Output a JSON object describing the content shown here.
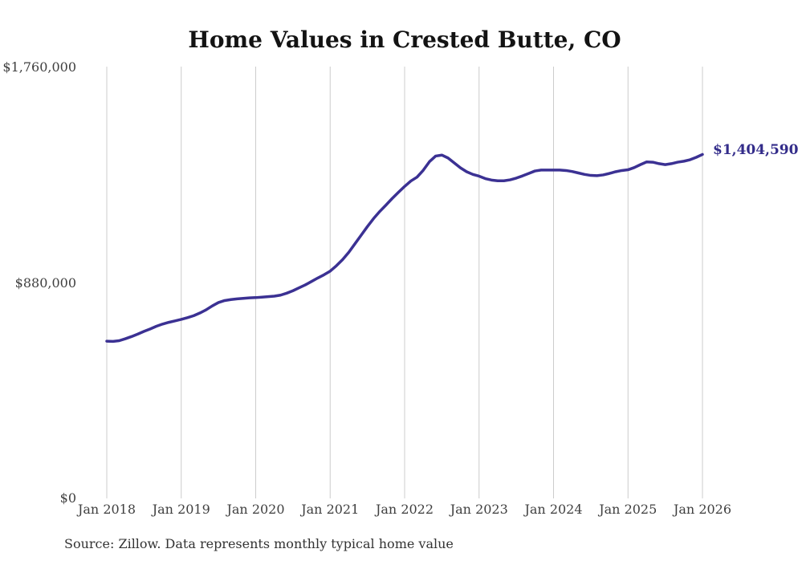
{
  "title": "Home Values in Crested Butte, CO",
  "source_note": "Source: Zillow. Data represents monthly typical home value",
  "latest_value_label": "$1,404,590",
  "colors": {
    "line": "#3b3193",
    "grid": "#cccccc",
    "title_text": "#131313",
    "axis_text": "#3f3f3f",
    "latest_label_text": "#332c8a",
    "background": "#ffffff"
  },
  "chart_data": {
    "type": "line",
    "title": "Home Values in Crested Butte, CO",
    "xlabel": "",
    "ylabel": "",
    "ylim": [
      0,
      1760000
    ],
    "grid": "vertical-only",
    "x_interval": "monthly",
    "x_range": [
      "Jan 2018",
      "Jan 2026"
    ],
    "x_tick_labels": [
      "Jan 2018",
      "Jan 2019",
      "Jan 2020",
      "Jan 2021",
      "Jan 2022",
      "Jan 2023",
      "Jan 2024",
      "Jan 2025",
      "Jan 2026"
    ],
    "y_ticks": [
      {
        "label": "$0",
        "value": 0
      },
      {
        "label": "$880,000",
        "value": 880000
      },
      {
        "label": "$1,760,000",
        "value": 1760000
      }
    ],
    "latest_value": 1404590,
    "series": [
      {
        "name": "Monthly typical home value",
        "values": [
          642000,
          641000,
          644000,
          652000,
          661000,
          671000,
          682000,
          692000,
          703000,
          712000,
          719000,
          725000,
          731000,
          738000,
          746000,
          757000,
          770000,
          786000,
          800000,
          808000,
          812000,
          815000,
          817000,
          819000,
          820000,
          822000,
          824000,
          826000,
          830000,
          838000,
          848000,
          860000,
          872000,
          886000,
          900000,
          913000,
          928000,
          950000,
          975000,
          1005000,
          1040000,
          1075000,
          1110000,
          1143000,
          1172000,
          1198000,
          1225000,
          1250000,
          1274000,
          1296000,
          1312000,
          1340000,
          1375000,
          1398000,
          1402000,
          1390000,
          1370000,
          1350000,
          1334000,
          1323000,
          1316000,
          1306000,
          1300000,
          1297000,
          1297000,
          1301000,
          1308000,
          1317000,
          1327000,
          1337000,
          1341000,
          1341000,
          1341000,
          1341000,
          1339000,
          1335000,
          1329000,
          1323000,
          1319000,
          1318000,
          1321000,
          1327000,
          1334000,
          1339000,
          1342000,
          1351000,
          1363000,
          1374000,
          1373000,
          1367000,
          1363000,
          1367000,
          1373000,
          1377000,
          1383000,
          1393000,
          1404590
        ]
      }
    ]
  }
}
